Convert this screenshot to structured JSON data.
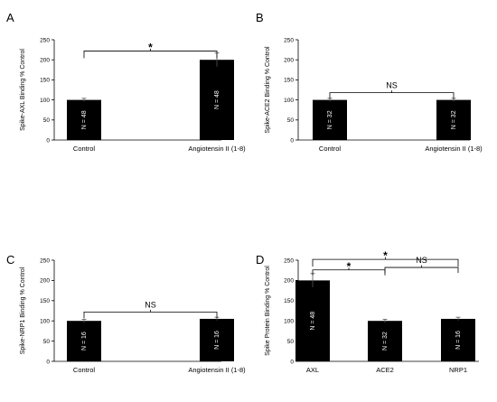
{
  "chart_data": [
    {
      "panel": "A",
      "type": "bar",
      "categories": [
        "Control",
        "Angiotensin II (1-8)"
      ],
      "values": [
        100,
        200
      ],
      "errors": [
        4,
        17
      ],
      "bar_labels": [
        "N = 48",
        "N = 48"
      ],
      "ylabel": "Spike-AXL Binding % Control",
      "ylim": [
        0,
        250
      ],
      "yticks": [
        "0",
        "50",
        "100",
        "150",
        "200",
        "250"
      ],
      "comparisons": [
        {
          "from": 0,
          "to": 1,
          "label": "*"
        }
      ],
      "bar_color": "#000000"
    },
    {
      "panel": "B",
      "type": "bar",
      "categories": [
        "Control",
        "Angiotensin II (1-8)"
      ],
      "values": [
        100,
        100
      ],
      "errors": [
        4,
        4
      ],
      "bar_labels": [
        "N = 32",
        "N = 32"
      ],
      "ylabel": "Spike-ACE2 Binding % Control",
      "ylim": [
        0,
        250
      ],
      "yticks": [
        "0",
        "50",
        "100",
        "150",
        "200",
        "250"
      ],
      "comparisons": [
        {
          "from": 0,
          "to": 1,
          "label": "NS"
        }
      ],
      "bar_color": "#000000"
    },
    {
      "panel": "C",
      "type": "bar",
      "categories": [
        "Control",
        "Angiotensin II (1-8)"
      ],
      "values": [
        100,
        105
      ],
      "errors": [
        4,
        4
      ],
      "bar_labels": [
        "N = 16",
        "N = 16"
      ],
      "ylabel": "Spike-NRP1 Binding % Control",
      "ylim": [
        0,
        250
      ],
      "yticks": [
        "0",
        "50",
        "100",
        "150",
        "200",
        "250"
      ],
      "comparisons": [
        {
          "from": 0,
          "to": 1,
          "label": "NS"
        }
      ],
      "bar_color": "#000000"
    },
    {
      "panel": "D",
      "type": "bar",
      "categories": [
        "AXL",
        "ACE2",
        "NRP1"
      ],
      "values": [
        200,
        100,
        105
      ],
      "errors": [
        17,
        4,
        4
      ],
      "bar_labels": [
        "N = 48",
        "N = 32",
        "N = 16"
      ],
      "ylabel": "Spike Protein Binding % Control",
      "ylim": [
        0,
        250
      ],
      "yticks": [
        "0",
        "50",
        "100",
        "150",
        "200",
        "250"
      ],
      "comparisons": [
        {
          "from": 0,
          "to": 2,
          "label": "*"
        },
        {
          "from": 0,
          "to": 1,
          "label": "*"
        },
        {
          "from": 1,
          "to": 2,
          "label": "NS"
        }
      ],
      "bar_color": "#000000"
    }
  ]
}
